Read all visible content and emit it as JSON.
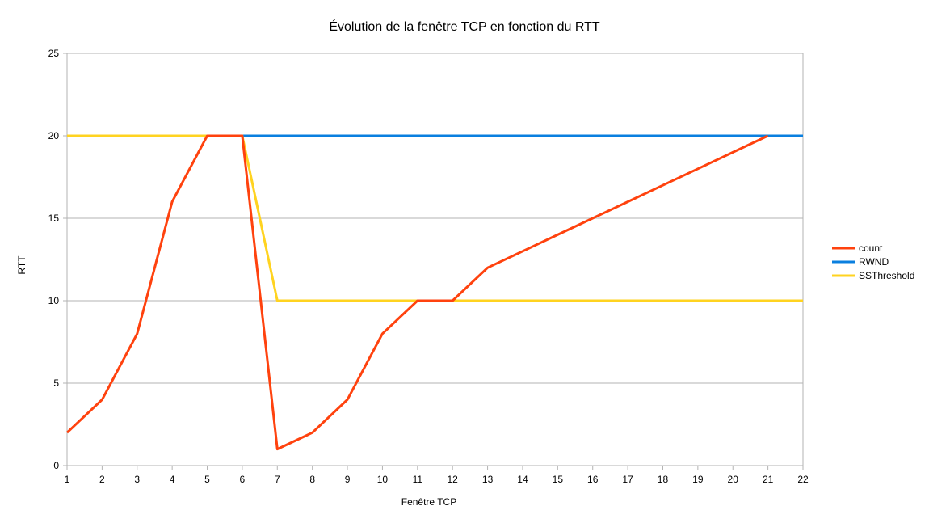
{
  "chart_data": {
    "type": "line",
    "title": "Évolution de la fenêtre TCP en fonction du RTT",
    "xlabel": "Fenêtre TCP",
    "ylabel": "RTT",
    "x": [
      1,
      2,
      3,
      4,
      5,
      6,
      7,
      8,
      9,
      10,
      11,
      12,
      13,
      14,
      15,
      16,
      17,
      18,
      19,
      20,
      21,
      22
    ],
    "xlim": [
      1,
      22
    ],
    "ylim": [
      0,
      25
    ],
    "yticks": [
      0,
      5,
      10,
      15,
      20,
      25
    ],
    "grid": true,
    "legend_position": "right",
    "series": [
      {
        "name": "count",
        "color": "#ff420e",
        "x": [
          1,
          2,
          3,
          4,
          5,
          6,
          7,
          8,
          9,
          10,
          11,
          12,
          13,
          14,
          15,
          16,
          17,
          18,
          19,
          20,
          21
        ],
        "values": [
          2,
          4,
          8,
          16,
          20,
          20,
          1,
          2,
          4,
          8,
          10,
          10,
          12,
          13,
          14,
          15,
          16,
          17,
          18,
          19,
          20
        ]
      },
      {
        "name": "RWND",
        "color": "#0a7fdf",
        "x": [
          1,
          2,
          3,
          4,
          5,
          6,
          7,
          8,
          9,
          10,
          11,
          12,
          13,
          14,
          15,
          16,
          17,
          18,
          19,
          20,
          21,
          22
        ],
        "values": [
          20,
          20,
          20,
          20,
          20,
          20,
          20,
          20,
          20,
          20,
          20,
          20,
          20,
          20,
          20,
          20,
          20,
          20,
          20,
          20,
          20,
          20
        ]
      },
      {
        "name": "SSThreshold",
        "color": "#ffd320",
        "x": [
          1,
          2,
          3,
          4,
          5,
          6,
          7,
          8,
          9,
          10,
          11,
          12,
          13,
          14,
          15,
          16,
          17,
          18,
          19,
          20,
          21,
          22
        ],
        "values": [
          20,
          20,
          20,
          20,
          20,
          20,
          10,
          10,
          10,
          10,
          10,
          10,
          10,
          10,
          10,
          10,
          10,
          10,
          10,
          10,
          10,
          10
        ]
      }
    ]
  }
}
